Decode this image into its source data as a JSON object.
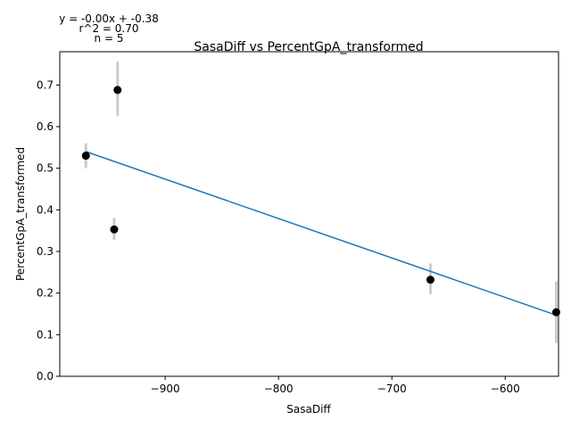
{
  "chart_data": {
    "type": "scatter",
    "title": "SasaDiff vs PercentGpA_transformed",
    "xlabel": "SasaDiff",
    "ylabel": "PercentGpA_transformed",
    "xlim": [
      -993,
      -553
    ],
    "ylim": [
      0.0,
      0.78
    ],
    "xticks": [
      -900,
      -800,
      -700,
      -600
    ],
    "xtick_labels": [
      "−900",
      "−800",
      "−700",
      "−600"
    ],
    "yticks": [
      0.0,
      0.1,
      0.2,
      0.3,
      0.4,
      0.5,
      0.6,
      0.7
    ],
    "ytick_labels": [
      "0.0",
      "0.1",
      "0.2",
      "0.3",
      "0.4",
      "0.5",
      "0.6",
      "0.7"
    ],
    "grid": false,
    "points": [
      {
        "x": -970,
        "y": 0.53,
        "err_low": 0.5,
        "err_high": 0.56
      },
      {
        "x": -942,
        "y": 0.688,
        "err_low": 0.625,
        "err_high": 0.756
      },
      {
        "x": -945,
        "y": 0.353,
        "err_low": 0.328,
        "err_high": 0.38
      },
      {
        "x": -666,
        "y": 0.232,
        "err_low": 0.197,
        "err_high": 0.271
      },
      {
        "x": -555,
        "y": 0.154,
        "err_low": 0.08,
        "err_high": 0.228
      }
    ],
    "fit_line": {
      "x": [
        -970,
        -555
      ],
      "y": [
        0.54,
        0.147
      ]
    },
    "annotations": [
      "y = -0.00x + -0.38",
      "r^2 = 0.70",
      "n = 5"
    ],
    "colors": {
      "points": "#000000",
      "errorbars": "#cccccc",
      "fit": "#1f77b4"
    }
  }
}
